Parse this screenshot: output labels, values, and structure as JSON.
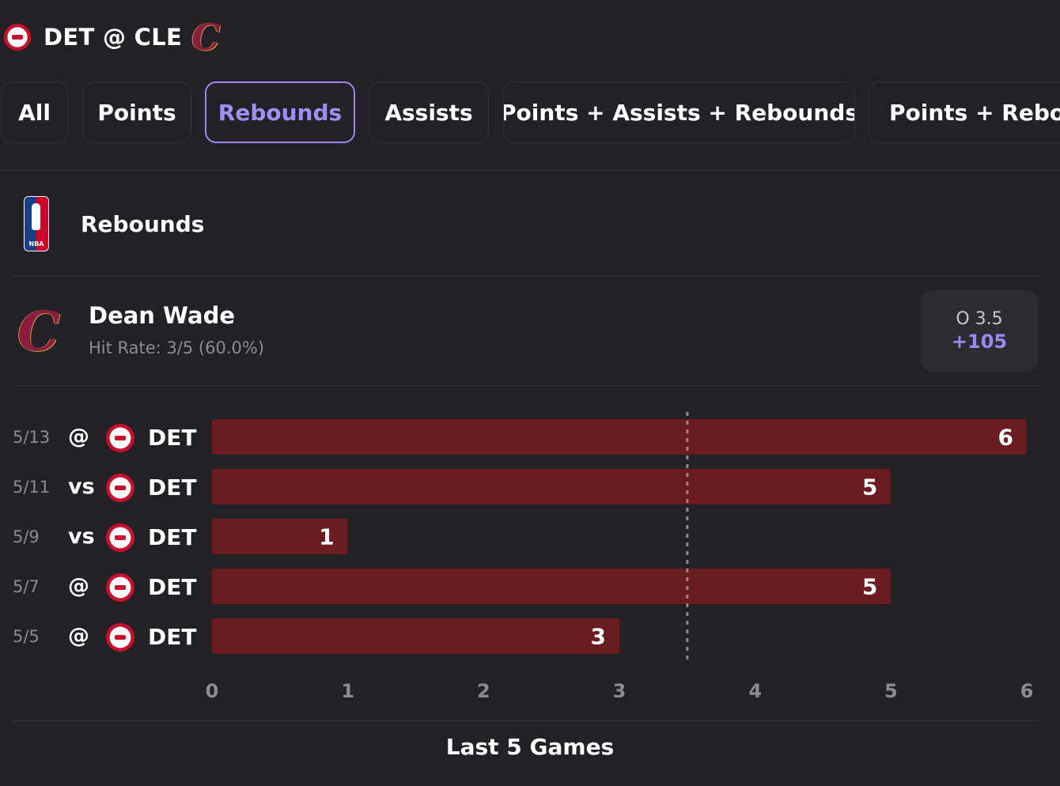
{
  "header": {
    "matchup": "DET @ CLE",
    "away_logo_icon": "pistons-logo-icon",
    "home_logo_icon": "cavaliers-logo-icon"
  },
  "tabs": [
    {
      "label": "All",
      "active": false
    },
    {
      "label": "Points",
      "active": false
    },
    {
      "label": "Rebounds",
      "active": true
    },
    {
      "label": "Assists",
      "active": false
    },
    {
      "label": "Points + Assists + Rebounds",
      "active": false
    },
    {
      "label": "Points + Rebour",
      "active": false
    }
  ],
  "section": {
    "league_icon": "nba-logo-icon",
    "title": "Rebounds"
  },
  "player": {
    "name": "Dean Wade",
    "hit_rate": "Hit Rate: 3/5 (60.0%)",
    "team_icon": "cavaliers-logo-icon"
  },
  "odds": {
    "line": "O 3.5",
    "price": "+105"
  },
  "games": [
    {
      "date": "5/13",
      "loc": "@",
      "opp": "DET"
    },
    {
      "date": "5/11",
      "loc": "vs",
      "opp": "DET"
    },
    {
      "date": "5/9",
      "loc": "vs",
      "opp": "DET"
    },
    {
      "date": "5/7",
      "loc": "@",
      "opp": "DET"
    },
    {
      "date": "5/5",
      "loc": "@",
      "opp": "DET"
    }
  ],
  "chart_data": {
    "type": "bar",
    "orientation": "horizontal",
    "categories": [
      "5/13",
      "5/11",
      "5/9",
      "5/7",
      "5/5"
    ],
    "values": [
      6,
      5,
      1,
      5,
      3
    ],
    "reference_line": 3.5,
    "xlim": [
      0,
      6
    ],
    "xticks": [
      "0",
      "1",
      "2",
      "3",
      "4",
      "5",
      "6"
    ],
    "bar_color": "#6a1c21",
    "reference_line_color": "#8f8b95",
    "title": "Last 5 Games"
  },
  "colors": {
    "background": "#232126",
    "accent": "#9b86f0",
    "bar": "#6a1c21"
  }
}
